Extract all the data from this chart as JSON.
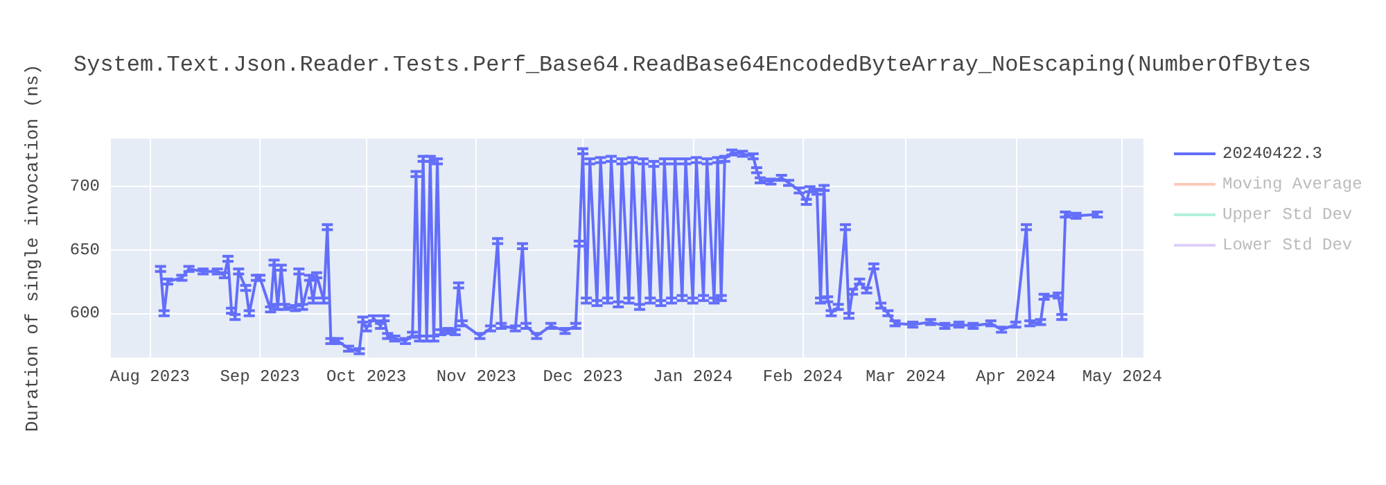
{
  "chart_data": {
    "type": "line",
    "title": "System.Text.Json.Reader.Tests.Perf_Base64.ReadBase64EncodedByteArray_NoEscaping(NumberOfBytes",
    "ylabel": "Duration of single invocation (ns)",
    "x": [
      "2023-08-04",
      "2023-08-05",
      "2023-08-06",
      "2023-08-10",
      "2023-08-12",
      "2023-08-16",
      "2023-08-20",
      "2023-08-22",
      "2023-08-23",
      "2023-08-24",
      "2023-08-25",
      "2023-08-26",
      "2023-08-28",
      "2023-08-29",
      "2023-08-31",
      "2023-09-01",
      "2023-09-04",
      "2023-09-05",
      "2023-09-06",
      "2023-09-07",
      "2023-09-08",
      "2023-09-11",
      "2023-09-12",
      "2023-09-13",
      "2023-09-15",
      "2023-09-16",
      "2023-09-17",
      "2023-09-19",
      "2023-09-20",
      "2023-09-21",
      "2023-09-23",
      "2023-09-26",
      "2023-09-29",
      "2023-09-30",
      "2023-10-01",
      "2023-10-03",
      "2023-10-05",
      "2023-10-06",
      "2023-10-07",
      "2023-10-09",
      "2023-10-12",
      "2023-10-14",
      "2023-10-15",
      "2023-10-16",
      "2023-10-17",
      "2023-10-18",
      "2023-10-19",
      "2023-10-20",
      "2023-10-21",
      "2023-10-22",
      "2023-10-24",
      "2023-10-26",
      "2023-10-27",
      "2023-10-28",
      "2023-11-02",
      "2023-11-05",
      "2023-11-07",
      "2023-11-08",
      "2023-11-12",
      "2023-11-14",
      "2023-11-15",
      "2023-11-18",
      "2023-11-22",
      "2023-11-26",
      "2023-11-29",
      "2023-11-30",
      "2023-12-01",
      "2023-12-02",
      "2023-12-03",
      "2023-12-05",
      "2023-12-06",
      "2023-12-08",
      "2023-12-09",
      "2023-12-11",
      "2023-12-12",
      "2023-12-14",
      "2023-12-15",
      "2023-12-17",
      "2023-12-18",
      "2023-12-20",
      "2023-12-21",
      "2023-12-23",
      "2023-12-24",
      "2023-12-26",
      "2023-12-27",
      "2023-12-29",
      "2023-12-30",
      "2024-01-01",
      "2024-01-02",
      "2024-01-04",
      "2024-01-05",
      "2024-01-07",
      "2024-01-08",
      "2024-01-09",
      "2024-01-10",
      "2024-01-12",
      "2024-01-15",
      "2024-01-18",
      "2024-01-19",
      "2024-01-20",
      "2024-01-23",
      "2024-01-26",
      "2024-01-28",
      "2024-01-31",
      "2024-02-02",
      "2024-02-03",
      "2024-02-05",
      "2024-02-06",
      "2024-02-07",
      "2024-02-08",
      "2024-02-09",
      "2024-02-11",
      "2024-02-13",
      "2024-02-14",
      "2024-02-15",
      "2024-02-17",
      "2024-02-19",
      "2024-02-21",
      "2024-02-23",
      "2024-02-25",
      "2024-02-27",
      "2024-03-03",
      "2024-03-08",
      "2024-03-12",
      "2024-03-16",
      "2024-03-20",
      "2024-03-25",
      "2024-03-28",
      "2024-04-01",
      "2024-04-04",
      "2024-04-05",
      "2024-04-08",
      "2024-04-09",
      "2024-04-13",
      "2024-04-14",
      "2024-04-15",
      "2024-04-18",
      "2024-04-24"
    ],
    "series": [
      {
        "name": "20240422.3",
        "color": "#636efa",
        "values": [
          635,
          600,
          625,
          628,
          635,
          633,
          633,
          630,
          643,
          602,
          597,
          633,
          620,
          600,
          628,
          628,
          603,
          640,
          605,
          636,
          605,
          604,
          633,
          605,
          628,
          610,
          630,
          610,
          668,
          578,
          578,
          572,
          570,
          595,
          588,
          596,
          590,
          596,
          582,
          580,
          578,
          583,
          710,
          580,
          722,
          580,
          722,
          580,
          720,
          585,
          586,
          585,
          622,
          592,
          582,
          588,
          657,
          590,
          588,
          653,
          590,
          582,
          590,
          586,
          590,
          655,
          728,
          610,
          720,
          608,
          721,
          610,
          722,
          607,
          720,
          610,
          721,
          605,
          720,
          610,
          718,
          608,
          720,
          610,
          720,
          612,
          720,
          610,
          721,
          612,
          720,
          610,
          721,
          612,
          722,
          727,
          726,
          724,
          713,
          705,
          704,
          707,
          703,
          697,
          688,
          698,
          696,
          610,
          699,
          611,
          600,
          605,
          668,
          598,
          617,
          625,
          618,
          637,
          606,
          600,
          592,
          591,
          593,
          590,
          591,
          590,
          592,
          587,
          591,
          668,
          592,
          593,
          613,
          614,
          597,
          678,
          677,
          678
        ],
        "errors": [
          2,
          2,
          2,
          2,
          2,
          2,
          2,
          2,
          2,
          2,
          2,
          2,
          2,
          2,
          2,
          2,
          2,
          2,
          2,
          2,
          2,
          2,
          2,
          2,
          2,
          2,
          2,
          2,
          2,
          2,
          2,
          2,
          2,
          2,
          2,
          2,
          2,
          2,
          2,
          2,
          2,
          2,
          2,
          2,
          2,
          2,
          2,
          2,
          2,
          2,
          2,
          2,
          2,
          2,
          2,
          2,
          2,
          2,
          2,
          2,
          2,
          2,
          2,
          2,
          2,
          2,
          2,
          2,
          2,
          2,
          2,
          2,
          2,
          2,
          2,
          2,
          2,
          2,
          2,
          2,
          2,
          2,
          2,
          2,
          2,
          2,
          2,
          2,
          2,
          2,
          2,
          2,
          2,
          2,
          2,
          2,
          2,
          2,
          2,
          2,
          2,
          2,
          2,
          2,
          2,
          2,
          2,
          2,
          2,
          2,
          2,
          2,
          2,
          2,
          2,
          2,
          2,
          2,
          2,
          2,
          2,
          2,
          2,
          2,
          2,
          2,
          2,
          2,
          2,
          2,
          2,
          2,
          2,
          2,
          2,
          2,
          2,
          2
        ]
      },
      {
        "name": "Moving Average",
        "color": "#f8a98f",
        "values": [
          null,
          null,
          null,
          null,
          null,
          null,
          null,
          null,
          null,
          null,
          null,
          null,
          null,
          null,
          null,
          null,
          null,
          null,
          null,
          null,
          null,
          null,
          null,
          null,
          null,
          null,
          null,
          null,
          null,
          null,
          null,
          null,
          null,
          null,
          null,
          null,
          null,
          null,
          null,
          null,
          null,
          null,
          null,
          null,
          null,
          null,
          null,
          null,
          null,
          null,
          null,
          null,
          null,
          null,
          null,
          null,
          null,
          null,
          null,
          null,
          null,
          null,
          null,
          null,
          null,
          null,
          null,
          null,
          null,
          null,
          null,
          null,
          null,
          null,
          null,
          null,
          null,
          null,
          null,
          null,
          null,
          null,
          null,
          null,
          null,
          null,
          null,
          null,
          null,
          null,
          null,
          null,
          null,
          null,
          null,
          null,
          null,
          null,
          null,
          null,
          null,
          null,
          null,
          null,
          null,
          null,
          null,
          null,
          null,
          null,
          null,
          null,
          null,
          null,
          null,
          null,
          null,
          null,
          null,
          null,
          null,
          null,
          null,
          null,
          null,
          null,
          null,
          null,
          null,
          null,
          null,
          null,
          null,
          null,
          null,
          null,
          null,
          null
        ]
      },
      {
        "name": "Upper Std Dev",
        "color": "#7fe5c0",
        "values": [
          null,
          null,
          null,
          null,
          null,
          null,
          null,
          null,
          null,
          null,
          null,
          null,
          null,
          null,
          null,
          null,
          null,
          null,
          null,
          null,
          null,
          null,
          null,
          null,
          null,
          null,
          null,
          null,
          null,
          null,
          null,
          null,
          null,
          null,
          null,
          null,
          null,
          null,
          null,
          null,
          null,
          null,
          null,
          null,
          null,
          null,
          null,
          null,
          null,
          null,
          null,
          null,
          null,
          null,
          null,
          null,
          null,
          null,
          null,
          null,
          null,
          null,
          null,
          null,
          null,
          null,
          null,
          null,
          null,
          null,
          null,
          null,
          null,
          null,
          null,
          null,
          null,
          null,
          null,
          null,
          null,
          null,
          null,
          null,
          null,
          null,
          null,
          null,
          null,
          null,
          null,
          null,
          null,
          null,
          null,
          null,
          null,
          null,
          null,
          null,
          null,
          null,
          null,
          null,
          null,
          null,
          null,
          null,
          null,
          null,
          null,
          null,
          null,
          null,
          null,
          null,
          null,
          null,
          null,
          null,
          null,
          null,
          null,
          null,
          null,
          null,
          null,
          null,
          null,
          null,
          null,
          null,
          null,
          null,
          null,
          null,
          null,
          null
        ]
      },
      {
        "name": "Lower Std Dev",
        "color": "#c6b0f7",
        "values": [
          null,
          null,
          null,
          null,
          null,
          null,
          null,
          null,
          null,
          null,
          null,
          null,
          null,
          null,
          null,
          null,
          null,
          null,
          null,
          null,
          null,
          null,
          null,
          null,
          null,
          null,
          null,
          null,
          null,
          null,
          null,
          null,
          null,
          null,
          null,
          null,
          null,
          null,
          null,
          null,
          null,
          null,
          null,
          null,
          null,
          null,
          null,
          null,
          null,
          null,
          null,
          null,
          null,
          null,
          null,
          null,
          null,
          null,
          null,
          null,
          null,
          null,
          null,
          null,
          null,
          null,
          null,
          null,
          null,
          null,
          null,
          null,
          null,
          null,
          null,
          null,
          null,
          null,
          null,
          null,
          null,
          null,
          null,
          null,
          null,
          null,
          null,
          null,
          null,
          null,
          null,
          null,
          null,
          null,
          null,
          null,
          null,
          null,
          null,
          null,
          null,
          null,
          null,
          null,
          null,
          null,
          null,
          null,
          null,
          null,
          null,
          null,
          null,
          null,
          null,
          null,
          null,
          null,
          null,
          null,
          null,
          null,
          null,
          null,
          null,
          null,
          null,
          null,
          null,
          null,
          null,
          null,
          null,
          null,
          null,
          null,
          null,
          null
        ]
      }
    ],
    "xlim": [
      "2023-07-21",
      "2024-05-07"
    ],
    "xticks": [
      {
        "value": "2023-08-01",
        "label": "Aug 2023"
      },
      {
        "value": "2023-09-01",
        "label": "Sep 2023"
      },
      {
        "value": "2023-10-01",
        "label": "Oct 2023"
      },
      {
        "value": "2023-11-01",
        "label": "Nov 2023"
      },
      {
        "value": "2023-12-01",
        "label": "Dec 2023"
      },
      {
        "value": "2024-01-01",
        "label": "Jan 2024"
      },
      {
        "value": "2024-02-01",
        "label": "Feb 2024"
      },
      {
        "value": "2024-03-01",
        "label": "Mar 2024"
      },
      {
        "value": "2024-04-01",
        "label": "Apr 2024"
      },
      {
        "value": "2024-05-01",
        "label": "May 2024"
      }
    ],
    "ylim": [
      565,
      738
    ],
    "yticks": [
      600,
      650,
      700
    ],
    "grid": true,
    "legend": "top right",
    "line_style": "solid"
  }
}
